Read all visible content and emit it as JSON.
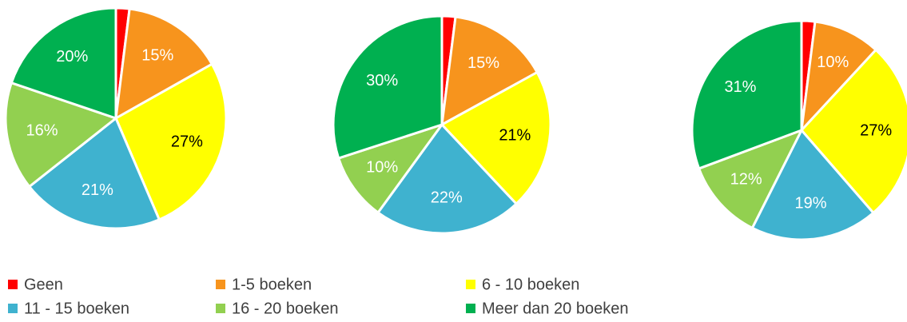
{
  "chart_data": [
    {
      "type": "pie",
      "categories": [
        "Geen",
        "1-5 boeken",
        "6 - 10 boeken",
        "11 - 15 boeken",
        "16 - 20 boeken",
        "Meer dan 20 boeken"
      ],
      "values": [
        2,
        15,
        27,
        21,
        16,
        20
      ],
      "value_labels": [
        null,
        "15%",
        "27%",
        "21%",
        "16%",
        "20%"
      ],
      "colors": [
        "#ff0000",
        "#f7941d",
        "#ffff00",
        "#3fb2cf",
        "#92d050",
        "#00b050"
      ]
    },
    {
      "type": "pie",
      "categories": [
        "Geen",
        "1-5 boeken",
        "6 - 10 boeken",
        "11 - 15 boeken",
        "16 - 20 boeken",
        "Meer dan 20 boeken"
      ],
      "values": [
        2,
        15,
        21,
        22,
        10,
        30
      ],
      "value_labels": [
        null,
        "15%",
        "21%",
        "22%",
        "10%",
        "30%"
      ],
      "colors": [
        "#ff0000",
        "#f7941d",
        "#ffff00",
        "#3fb2cf",
        "#92d050",
        "#00b050"
      ]
    },
    {
      "type": "pie",
      "categories": [
        "Geen",
        "1-5 boeken",
        "6 - 10 boeken",
        "11 - 15 boeken",
        "16 - 20 boeken",
        "Meer dan 20 boeken"
      ],
      "values": [
        2,
        10,
        27,
        19,
        12,
        31
      ],
      "value_labels": [
        null,
        "10%",
        "27%",
        "19%",
        "12%",
        "31%"
      ],
      "colors": [
        "#ff0000",
        "#f7941d",
        "#ffff00",
        "#3fb2cf",
        "#92d050",
        "#00b050"
      ]
    }
  ]
}
